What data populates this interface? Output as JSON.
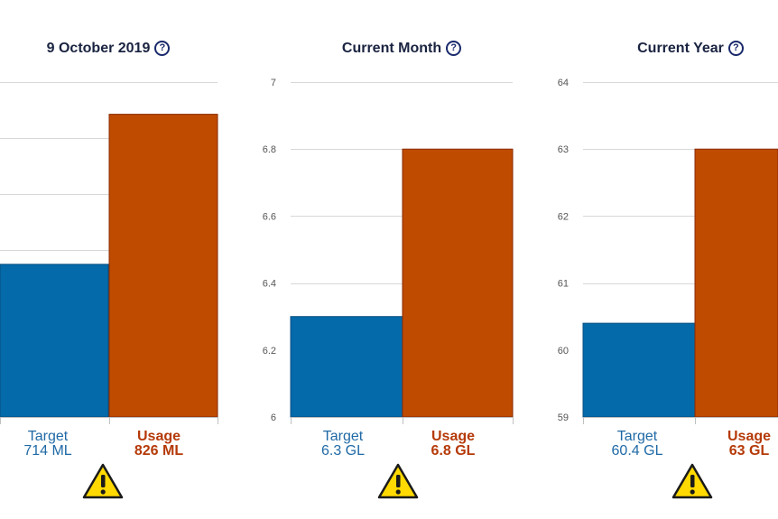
{
  "colors": {
    "target": "#046aaa",
    "usage": "#bf4b00",
    "grid": "#d8d8d8",
    "axis": "#c0c0c0",
    "warning": "#ffd900"
  },
  "chart_data": [
    {
      "type": "bar",
      "title": "9 October 2019",
      "categories": [
        "Target",
        "Usage"
      ],
      "values": [
        714,
        826
      ],
      "value_labels": [
        "714 ML",
        "826 ML"
      ],
      "ylim": [
        600,
        850
      ],
      "yticks": [],
      "icon": "help-icon",
      "warning_icon": "warning-icon"
    },
    {
      "type": "bar",
      "title": "Current Month",
      "categories": [
        "Target",
        "Usage"
      ],
      "values": [
        6.3,
        6.8
      ],
      "value_labels": [
        "6.3 GL",
        "6.8 GL"
      ],
      "ylim": [
        6,
        7
      ],
      "yticks": [
        "6",
        "6.2",
        "6.4",
        "6.6",
        "6.8",
        "7"
      ],
      "icon": "help-icon",
      "warning_icon": "warning-icon"
    },
    {
      "type": "bar",
      "title": "Current Year",
      "categories": [
        "Target",
        "Usage"
      ],
      "values": [
        60.4,
        63
      ],
      "value_labels": [
        "60.4 GL",
        "63 GL"
      ],
      "ylim": [
        59,
        64
      ],
      "yticks": [
        "59",
        "60",
        "61",
        "62",
        "63",
        "64"
      ],
      "icon": "help-icon",
      "warning_icon": "warning-icon"
    }
  ]
}
